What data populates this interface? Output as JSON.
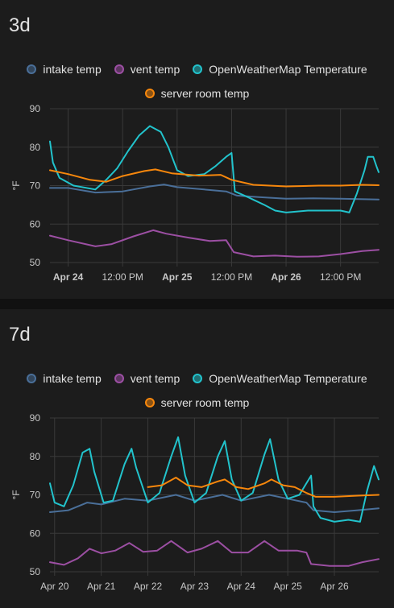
{
  "cards": [
    {
      "title": "3d",
      "legend": [
        {
          "name": "intake temp",
          "color": "#4a6f99"
        },
        {
          "name": "vent temp",
          "color": "#9c4fa3"
        },
        {
          "name": "OpenWeatherMap Temperature",
          "color": "#22c3cc"
        },
        {
          "name": "server room temp",
          "color": "#f7870c"
        }
      ]
    },
    {
      "title": "7d",
      "legend": [
        {
          "name": "intake temp",
          "color": "#4a6f99"
        },
        {
          "name": "vent temp",
          "color": "#9c4fa3"
        },
        {
          "name": "OpenWeatherMap Temperature",
          "color": "#22c3cc"
        },
        {
          "name": "server room temp",
          "color": "#f7870c"
        }
      ]
    }
  ],
  "chart_data": [
    {
      "type": "line",
      "title": "3d",
      "ylabel": "°F",
      "ylim": [
        50,
        90
      ],
      "yticks": [
        50,
        60,
        70,
        80,
        90
      ],
      "xlim": [
        0.333,
        3.35
      ],
      "xticks": [
        {
          "x": 0.5,
          "label": "Apr 24",
          "bold": true
        },
        {
          "x": 1.0,
          "label": "12:00 PM",
          "bold": false
        },
        {
          "x": 1.5,
          "label": "Apr 25",
          "bold": true
        },
        {
          "x": 2.0,
          "label": "12:00 PM",
          "bold": false
        },
        {
          "x": 2.5,
          "label": "Apr 26",
          "bold": true
        },
        {
          "x": 3.0,
          "label": "12:00 PM",
          "bold": false
        }
      ],
      "grid": true,
      "legend_position": "top-center",
      "series": [
        {
          "name": "intake temp",
          "color": "#4a6f99",
          "points": [
            [
              0.333,
              69.4
            ],
            [
              0.5,
              69.4
            ],
            [
              0.75,
              68.2
            ],
            [
              1.0,
              68.5
            ],
            [
              1.25,
              69.8
            ],
            [
              1.38,
              70.3
            ],
            [
              1.5,
              69.6
            ],
            [
              1.75,
              69.0
            ],
            [
              1.95,
              68.5
            ],
            [
              2.05,
              67.4
            ],
            [
              2.25,
              67.0
            ],
            [
              2.5,
              66.6
            ],
            [
              2.75,
              66.7
            ],
            [
              3.0,
              66.6
            ],
            [
              3.35,
              66.4
            ]
          ]
        },
        {
          "name": "vent temp",
          "color": "#9c4fa3",
          "points": [
            [
              0.333,
              57.0
            ],
            [
              0.5,
              55.8
            ],
            [
              0.75,
              54.2
            ],
            [
              0.9,
              54.8
            ],
            [
              1.1,
              56.8
            ],
            [
              1.28,
              58.4
            ],
            [
              1.4,
              57.5
            ],
            [
              1.6,
              56.5
            ],
            [
              1.8,
              55.6
            ],
            [
              1.95,
              55.8
            ],
            [
              2.02,
              52.7
            ],
            [
              2.2,
              51.6
            ],
            [
              2.4,
              51.8
            ],
            [
              2.6,
              51.5
            ],
            [
              2.8,
              51.6
            ],
            [
              3.0,
              52.2
            ],
            [
              3.2,
              53.0
            ],
            [
              3.35,
              53.3
            ]
          ]
        },
        {
          "name": "OpenWeatherMap Temperature",
          "color": "#22c3cc",
          "points": [
            [
              0.333,
              81.5
            ],
            [
              0.36,
              76.0
            ],
            [
              0.42,
              72.0
            ],
            [
              0.55,
              70.0
            ],
            [
              0.75,
              69.0
            ],
            [
              0.85,
              71.5
            ],
            [
              0.95,
              74.5
            ],
            [
              1.05,
              79.0
            ],
            [
              1.15,
              83.0
            ],
            [
              1.25,
              85.5
            ],
            [
              1.35,
              84.0
            ],
            [
              1.42,
              80.0
            ],
            [
              1.5,
              74.0
            ],
            [
              1.6,
              72.5
            ],
            [
              1.75,
              73.0
            ],
            [
              1.85,
              75.0
            ],
            [
              1.95,
              77.5
            ],
            [
              2.0,
              78.5
            ],
            [
              2.03,
              68.5
            ],
            [
              2.15,
              67.0
            ],
            [
              2.3,
              65.0
            ],
            [
              2.4,
              63.5
            ],
            [
              2.5,
              63.0
            ],
            [
              2.7,
              63.5
            ],
            [
              2.9,
              63.5
            ],
            [
              3.0,
              63.5
            ],
            [
              3.08,
              63.0
            ],
            [
              3.15,
              68.0
            ],
            [
              3.22,
              74.0
            ],
            [
              3.25,
              77.5
            ],
            [
              3.3,
              77.5
            ],
            [
              3.33,
              75.0
            ],
            [
              3.35,
              73.5
            ]
          ]
        },
        {
          "name": "server room temp",
          "color": "#f7870c",
          "points": [
            [
              0.333,
              74.0
            ],
            [
              0.5,
              73.0
            ],
            [
              0.7,
              71.5
            ],
            [
              0.85,
              71.0
            ],
            [
              1.0,
              72.5
            ],
            [
              1.2,
              73.8
            ],
            [
              1.3,
              74.2
            ],
            [
              1.45,
              73.2
            ],
            [
              1.7,
              72.6
            ],
            [
              1.9,
              72.8
            ],
            [
              2.0,
              71.5
            ],
            [
              2.2,
              70.2
            ],
            [
              2.5,
              69.8
            ],
            [
              2.8,
              70.0
            ],
            [
              3.0,
              70.0
            ],
            [
              3.2,
              70.2
            ],
            [
              3.35,
              70.1
            ]
          ]
        }
      ]
    },
    {
      "type": "line",
      "title": "7d",
      "ylabel": "°F",
      "ylim": [
        50,
        90
      ],
      "yticks": [
        50,
        60,
        70,
        80,
        90
      ],
      "xlim": [
        0.9,
        7.95
      ],
      "xticks": [
        {
          "x": 1,
          "label": "Apr 20",
          "bold": false
        },
        {
          "x": 2,
          "label": "Apr 21",
          "bold": false
        },
        {
          "x": 3,
          "label": "Apr 22",
          "bold": false
        },
        {
          "x": 4,
          "label": "Apr 23",
          "bold": false
        },
        {
          "x": 5,
          "label": "Apr 24",
          "bold": false
        },
        {
          "x": 6,
          "label": "Apr 25",
          "bold": false
        },
        {
          "x": 7,
          "label": "Apr 26",
          "bold": false
        }
      ],
      "grid": true,
      "legend_position": "top-center",
      "series": [
        {
          "name": "intake temp",
          "color": "#4a6f99",
          "points": [
            [
              0.9,
              65.5
            ],
            [
              1.3,
              66.0
            ],
            [
              1.7,
              68.0
            ],
            [
              2.0,
              67.5
            ],
            [
              2.5,
              69.0
            ],
            [
              3.0,
              68.5
            ],
            [
              3.6,
              70.0
            ],
            [
              4.0,
              68.5
            ],
            [
              4.6,
              70.0
            ],
            [
              5.0,
              68.5
            ],
            [
              5.6,
              70.0
            ],
            [
              6.0,
              69.0
            ],
            [
              6.4,
              68.0
            ],
            [
              6.55,
              66.0
            ],
            [
              7.0,
              65.5
            ],
            [
              7.5,
              66.0
            ],
            [
              7.95,
              66.5
            ]
          ]
        },
        {
          "name": "vent temp",
          "color": "#9c4fa3",
          "points": [
            [
              0.9,
              52.5
            ],
            [
              1.2,
              51.8
            ],
            [
              1.5,
              53.5
            ],
            [
              1.75,
              56.0
            ],
            [
              2.0,
              54.8
            ],
            [
              2.3,
              55.5
            ],
            [
              2.6,
              57.5
            ],
            [
              2.9,
              55.2
            ],
            [
              3.2,
              55.5
            ],
            [
              3.5,
              58.0
            ],
            [
              3.85,
              55.0
            ],
            [
              4.15,
              56.0
            ],
            [
              4.5,
              58.0
            ],
            [
              4.8,
              55.0
            ],
            [
              5.15,
              55.0
            ],
            [
              5.5,
              58.0
            ],
            [
              5.8,
              55.5
            ],
            [
              6.2,
              55.5
            ],
            [
              6.4,
              55.0
            ],
            [
              6.5,
              52.0
            ],
            [
              6.9,
              51.5
            ],
            [
              7.3,
              51.5
            ],
            [
              7.6,
              52.5
            ],
            [
              7.95,
              53.3
            ]
          ]
        },
        {
          "name": "OpenWeatherMap Temperature",
          "color": "#22c3cc",
          "points": [
            [
              0.9,
              73.0
            ],
            [
              1.0,
              68.0
            ],
            [
              1.2,
              67.0
            ],
            [
              1.4,
              72.5
            ],
            [
              1.6,
              81.0
            ],
            [
              1.75,
              82.0
            ],
            [
              1.85,
              76.0
            ],
            [
              2.05,
              68.0
            ],
            [
              2.25,
              68.5
            ],
            [
              2.5,
              78.0
            ],
            [
              2.65,
              82.0
            ],
            [
              2.75,
              77.0
            ],
            [
              3.0,
              68.0
            ],
            [
              3.25,
              70.5
            ],
            [
              3.5,
              80.0
            ],
            [
              3.65,
              85.0
            ],
            [
              3.8,
              75.0
            ],
            [
              4.0,
              68.0
            ],
            [
              4.25,
              70.5
            ],
            [
              4.5,
              80.0
            ],
            [
              4.65,
              84.0
            ],
            [
              4.8,
              74.0
            ],
            [
              5.0,
              68.5
            ],
            [
              5.25,
              70.5
            ],
            [
              5.5,
              80.5
            ],
            [
              5.62,
              84.5
            ],
            [
              5.8,
              74.0
            ],
            [
              6.0,
              69.0
            ],
            [
              6.25,
              70.0
            ],
            [
              6.5,
              75.0
            ],
            [
              6.55,
              67.0
            ],
            [
              6.7,
              64.0
            ],
            [
              7.0,
              63.0
            ],
            [
              7.3,
              63.5
            ],
            [
              7.55,
              63.0
            ],
            [
              7.7,
              71.0
            ],
            [
              7.85,
              77.5
            ],
            [
              7.95,
              74.0
            ]
          ]
        },
        {
          "name": "server room temp",
          "color": "#f7870c",
          "points": [
            [
              3.0,
              72.0
            ],
            [
              3.3,
              72.5
            ],
            [
              3.6,
              74.5
            ],
            [
              3.85,
              72.5
            ],
            [
              4.15,
              72.0
            ],
            [
              4.5,
              73.5
            ],
            [
              4.65,
              74.0
            ],
            [
              4.9,
              72.0
            ],
            [
              5.15,
              71.5
            ],
            [
              5.5,
              73.0
            ],
            [
              5.65,
              74.0
            ],
            [
              5.9,
              72.5
            ],
            [
              6.15,
              72.0
            ],
            [
              6.4,
              70.5
            ],
            [
              6.6,
              69.5
            ],
            [
              7.0,
              69.5
            ],
            [
              7.5,
              69.8
            ],
            [
              7.95,
              70.0
            ]
          ]
        }
      ]
    }
  ]
}
